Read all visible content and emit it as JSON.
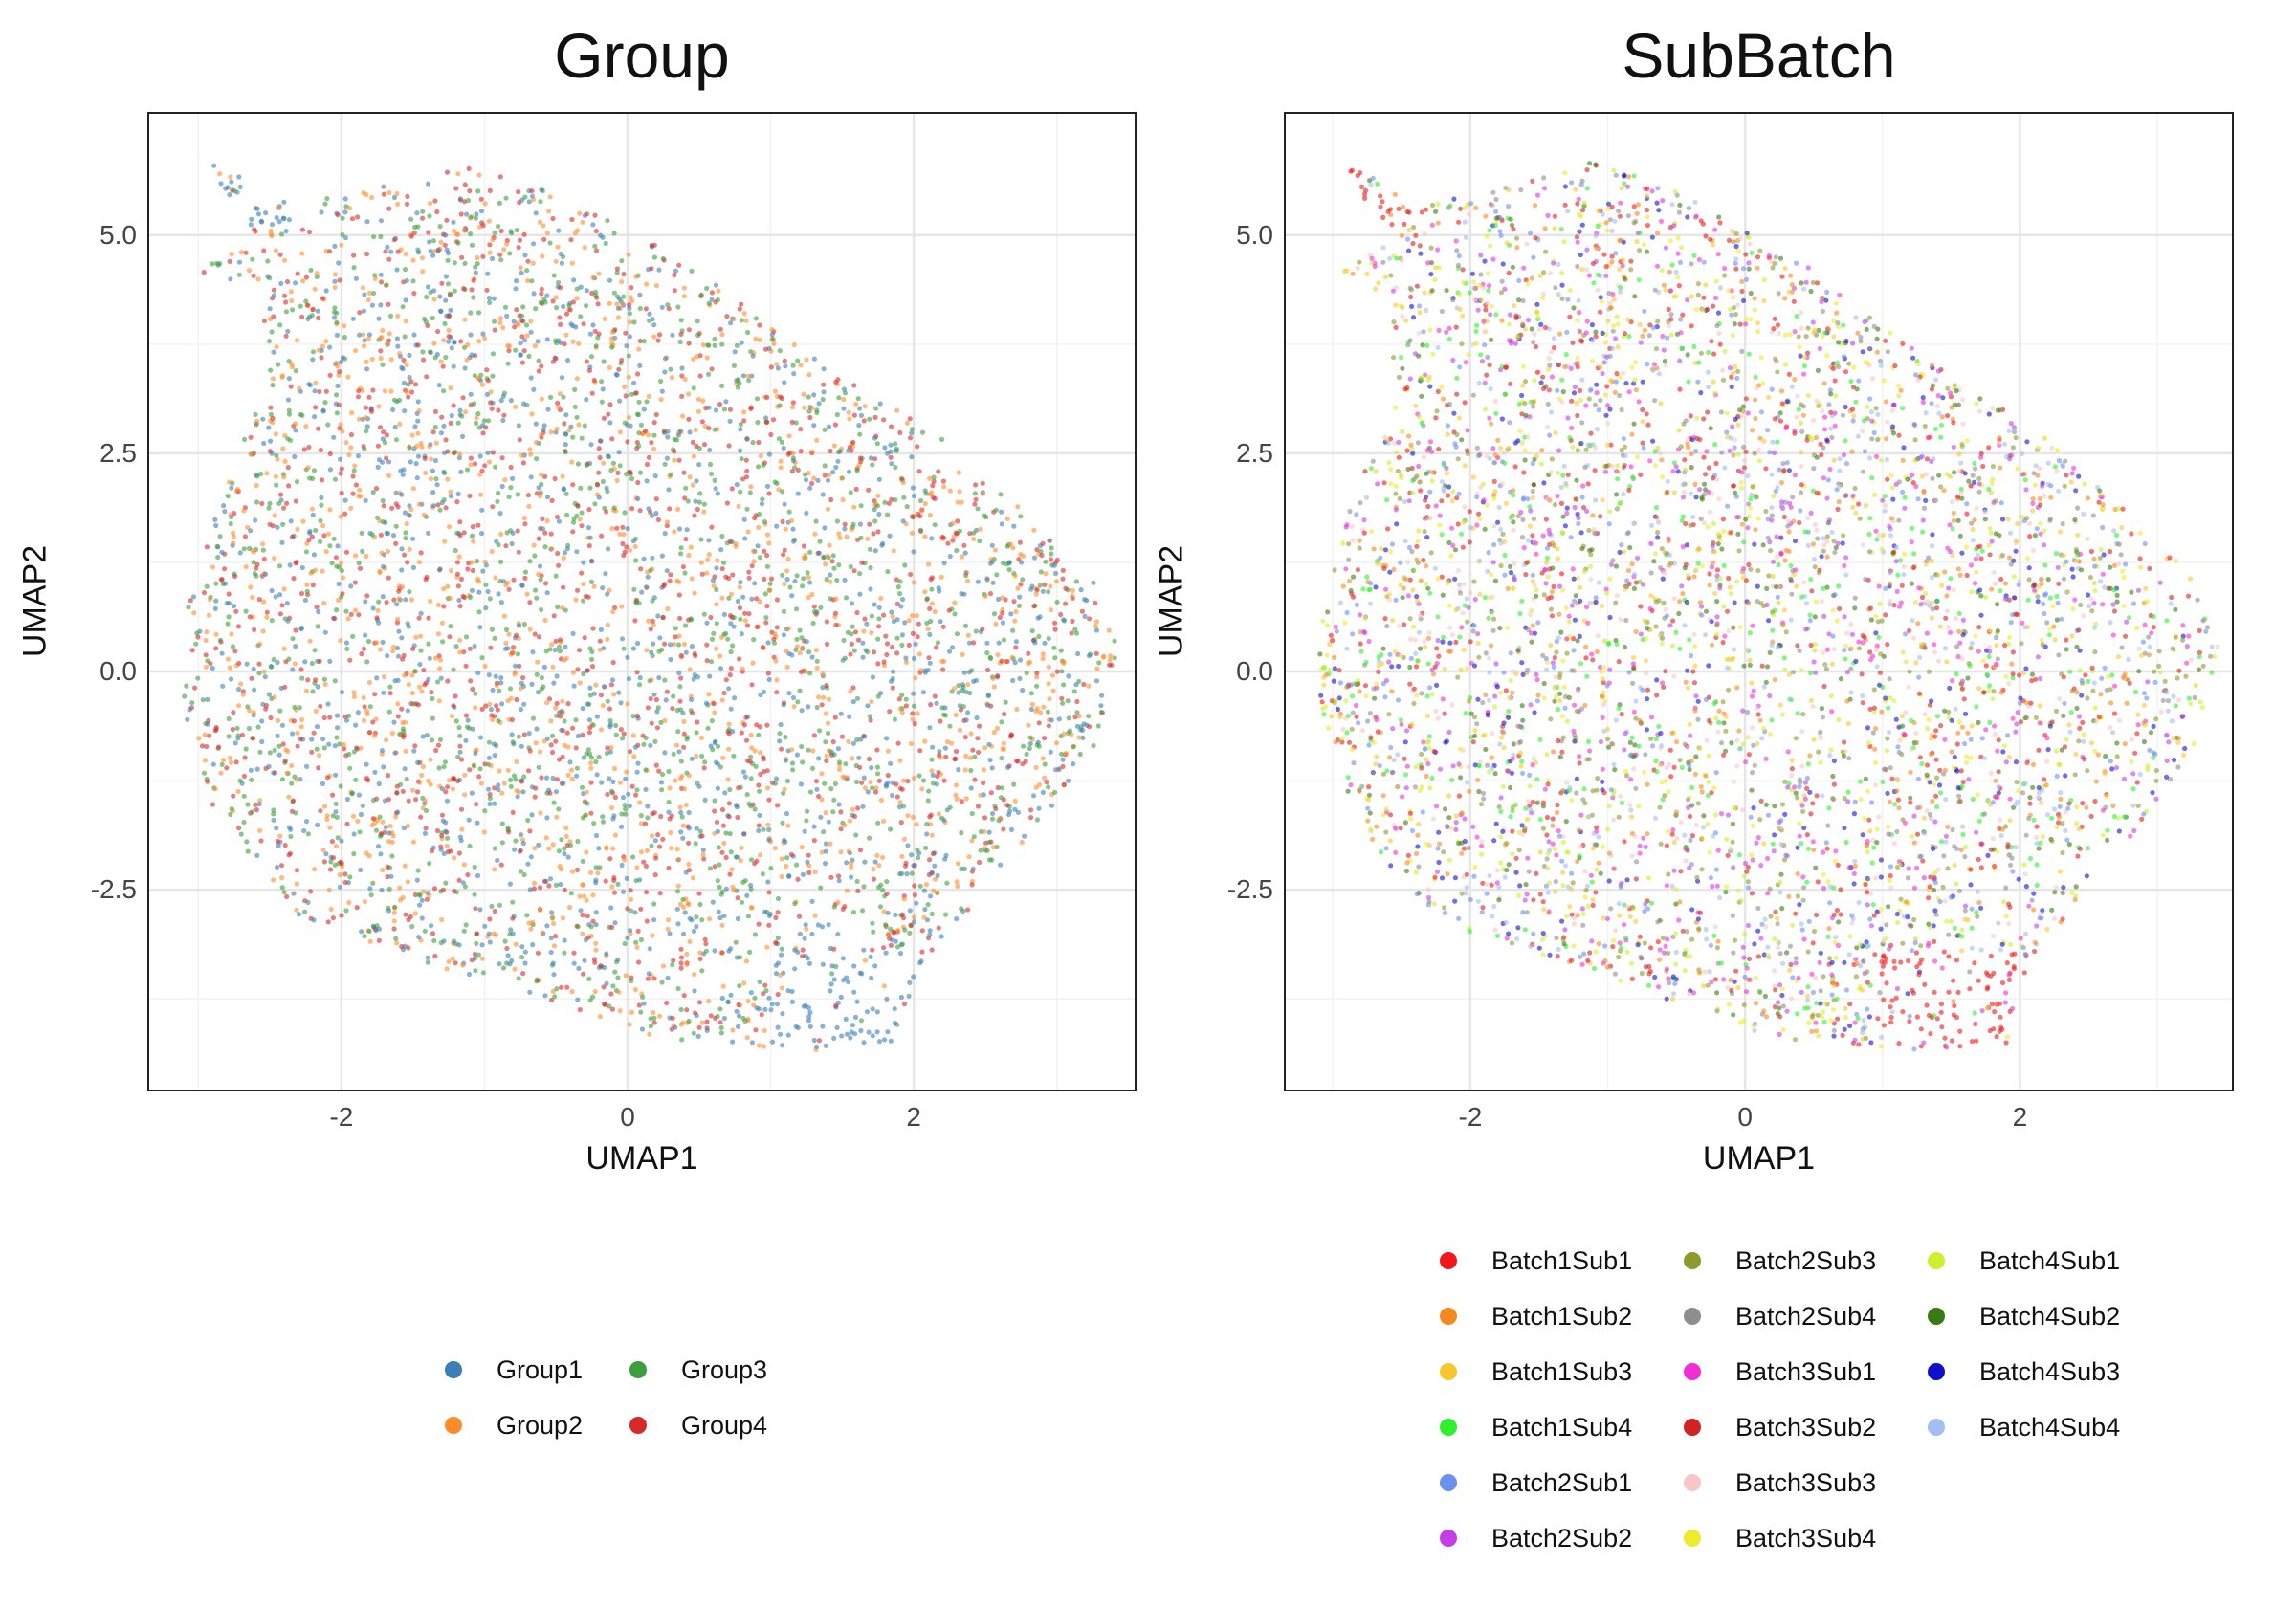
{
  "chart_data": [
    {
      "type": "scatter",
      "title": "Group",
      "xlabel": "UMAP1",
      "ylabel": "UMAP2",
      "xlim": [
        -3.35,
        3.55
      ],
      "ylim": [
        -4.8,
        6.4
      ],
      "xticks": [
        -2,
        0,
        2
      ],
      "xtick_labels": [
        "-2",
        "0",
        "2"
      ],
      "yticks": [
        -2.5,
        0.0,
        2.5,
        5.0
      ],
      "ytick_labels": [
        "-2.5",
        "0.0",
        "2.5",
        "5.0"
      ],
      "grid": true,
      "legend_position": "bottom",
      "legend_columns": 2,
      "legend": [
        {
          "name": "Group1",
          "color": "#3a7fb5"
        },
        {
          "name": "Group2",
          "color": "#ff8c2a"
        },
        {
          "name": "Group3",
          "color": "#3c9e3c"
        },
        {
          "name": "Group4",
          "color": "#d62a2a"
        }
      ],
      "regions": [
        {
          "series": "Group1",
          "note": "dominant",
          "x": [
            -2.9,
            -2.3
          ],
          "y": [
            5.1,
            5.8
          ]
        },
        {
          "series": "Group1",
          "note": "dominant",
          "x": [
            1.0,
            2.1
          ],
          "y": [
            -4.3,
            -3.2
          ]
        }
      ]
    },
    {
      "type": "scatter",
      "title": "SubBatch",
      "xlabel": "UMAP1",
      "ylabel": "UMAP2",
      "xlim": [
        -3.35,
        3.55
      ],
      "ylim": [
        -4.8,
        6.4
      ],
      "xticks": [
        -2,
        0,
        2
      ],
      "xtick_labels": [
        "-2",
        "0",
        "2"
      ],
      "yticks": [
        -2.5,
        0.0,
        2.5,
        5.0
      ],
      "ytick_labels": [
        "-2.5",
        "0.0",
        "2.5",
        "5.0"
      ],
      "grid": true,
      "legend_position": "bottom",
      "legend_columns": 3,
      "legend": [
        {
          "name": "Batch1Sub1",
          "color": "#f01818"
        },
        {
          "name": "Batch1Sub2",
          "color": "#f5881e"
        },
        {
          "name": "Batch1Sub3",
          "color": "#f6c82c"
        },
        {
          "name": "Batch1Sub4",
          "color": "#2ef02e"
        },
        {
          "name": "Batch2Sub1",
          "color": "#6a90f0"
        },
        {
          "name": "Batch2Sub2",
          "color": "#c43ee8"
        },
        {
          "name": "Batch2Sub3",
          "color": "#8e9a2e"
        },
        {
          "name": "Batch2Sub4",
          "color": "#8e8e8e"
        },
        {
          "name": "Batch3Sub1",
          "color": "#f22ed2"
        },
        {
          "name": "Batch3Sub2",
          "color": "#d22222"
        },
        {
          "name": "Batch3Sub3",
          "color": "#f7c6c6"
        },
        {
          "name": "Batch3Sub4",
          "color": "#eeea2e"
        },
        {
          "name": "Batch4Sub1",
          "color": "#ccf02e"
        },
        {
          "name": "Batch4Sub2",
          "color": "#3a7a12"
        },
        {
          "name": "Batch4Sub3",
          "color": "#1010cc"
        },
        {
          "name": "Batch4Sub4",
          "color": "#a2bef2"
        }
      ],
      "regions": [
        {
          "series": "Batch1Sub1",
          "note": "dominant",
          "x": [
            -2.9,
            -2.3
          ],
          "y": [
            5.1,
            5.8
          ]
        },
        {
          "series": "Batch1Sub3",
          "note": "dominant",
          "x": [
            -3.0,
            -2.6
          ],
          "y": [
            4.2,
            4.6
          ]
        },
        {
          "series": "Batch1Sub1",
          "note": "dominant",
          "x": [
            1.0,
            2.1
          ],
          "y": [
            -4.3,
            -3.2
          ]
        }
      ]
    }
  ]
}
